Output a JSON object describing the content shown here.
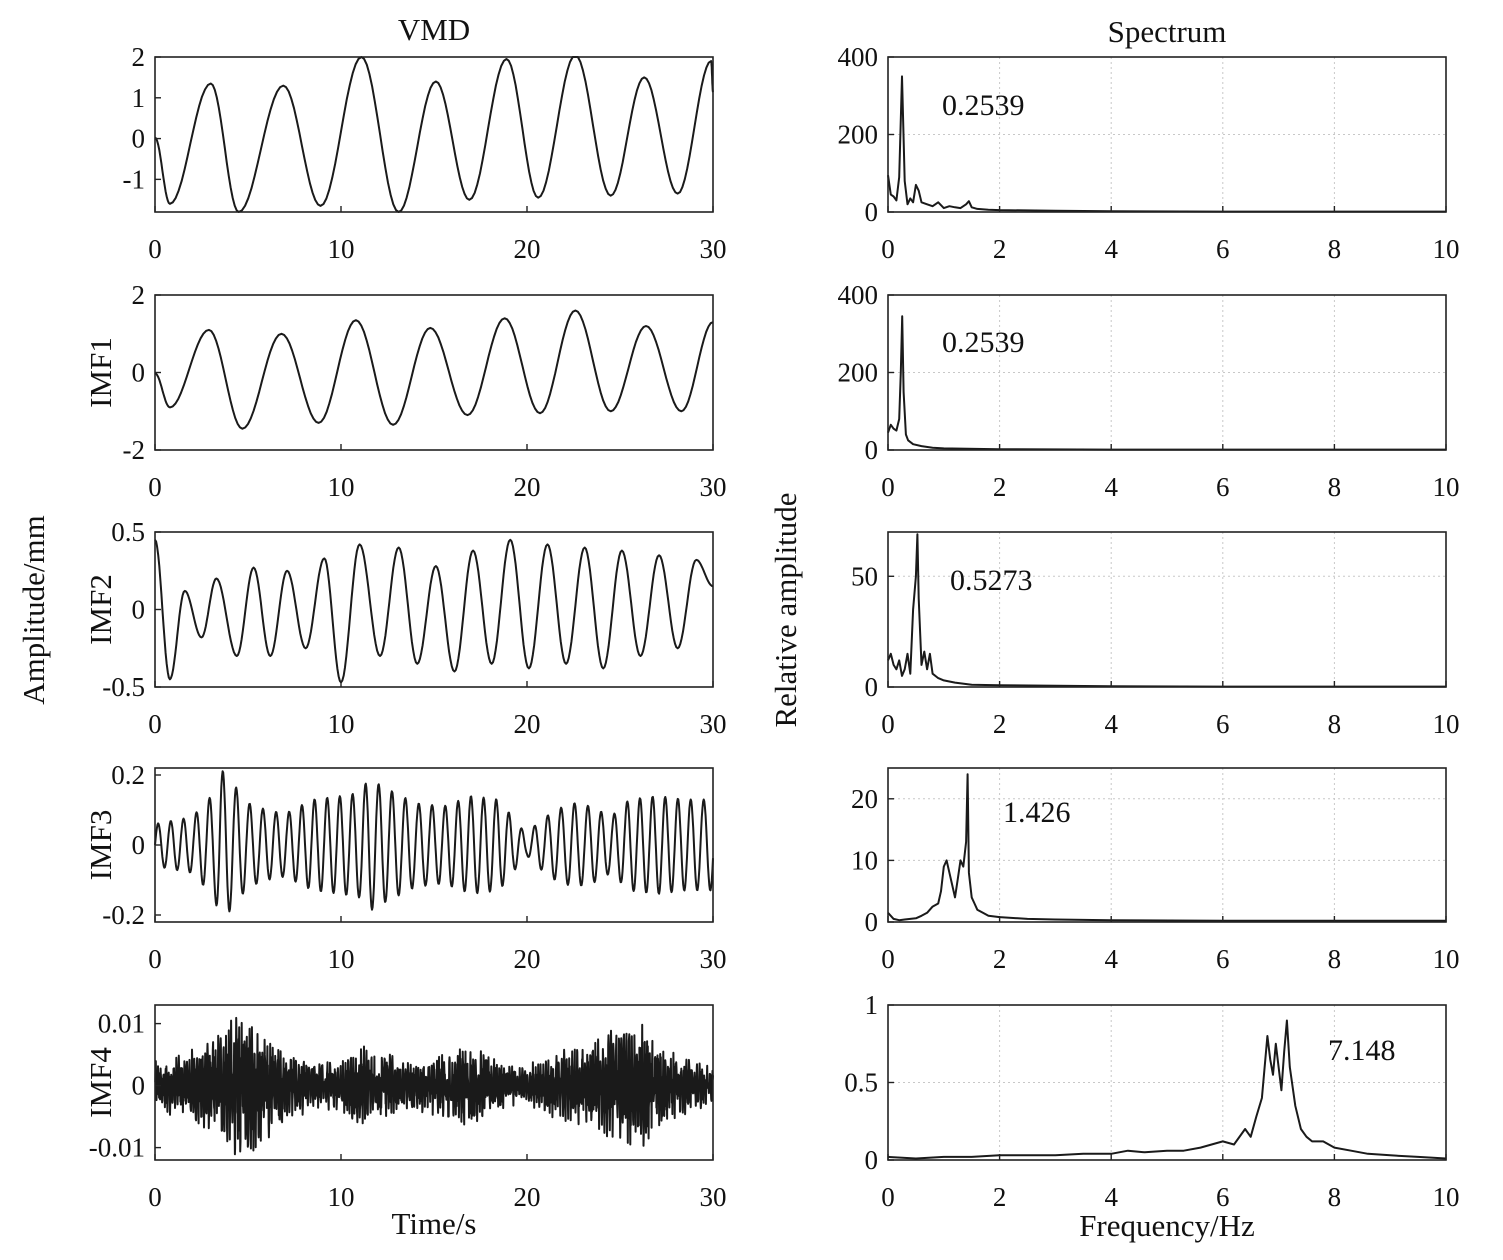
{
  "figure": {
    "left_title": "VMD",
    "right_title": "Spectrum",
    "left_ylabel": "Amplitude/mm",
    "right_ylabel": "Relative amplitude",
    "left_xlabel": "Time/s",
    "right_xlabel": "Frequency/Hz"
  },
  "chart_data": [
    {
      "type": "line",
      "panel": "time",
      "ylabel": "",
      "xlim": [
        0,
        30
      ],
      "ylim": [
        -1.8,
        2
      ],
      "xticks": [
        0,
        10,
        20,
        30
      ],
      "yticks": [
        -1,
        0,
        1,
        2
      ],
      "grid": false,
      "peaks_t": [
        3,
        6.9,
        11.1,
        15.1,
        18.9,
        22.6,
        26.3,
        29.9
      ],
      "peaks_y": [
        1.35,
        1.3,
        2.0,
        1.4,
        1.95,
        2.05,
        1.5,
        1.9
      ],
      "troughs_t": [
        0.8,
        4.5,
        8.9,
        13.1,
        16.9,
        20.6,
        24.5,
        28.1
      ],
      "troughs_y": [
        -1.6,
        -1.8,
        -1.65,
        -1.8,
        -1.5,
        -1.45,
        -1.4,
        -1.35
      ]
    },
    {
      "type": "line",
      "panel": "time",
      "ylabel": "IMF1",
      "xlim": [
        0,
        30
      ],
      "ylim": [
        -2,
        2
      ],
      "xticks": [
        0,
        10,
        20,
        30
      ],
      "yticks": [
        -2,
        0,
        2
      ],
      "grid": false,
      "peaks_t": [
        2.9,
        6.8,
        10.8,
        14.8,
        18.8,
        22.6,
        26.4,
        30
      ],
      "peaks_y": [
        1.1,
        1.0,
        1.35,
        1.15,
        1.4,
        1.6,
        1.2,
        1.3
      ],
      "troughs_t": [
        0.8,
        4.7,
        8.8,
        12.8,
        16.8,
        20.7,
        24.5,
        28.3
      ],
      "troughs_y": [
        -0.9,
        -1.45,
        -1.3,
        -1.35,
        -1.1,
        -1.05,
        -1.0,
        -1.0
      ]
    },
    {
      "type": "line",
      "panel": "time",
      "ylabel": "IMF2",
      "xlim": [
        0,
        30
      ],
      "ylim": [
        -0.5,
        0.5
      ],
      "xticks": [
        0,
        10,
        20,
        30
      ],
      "yticks": [
        -0.5,
        0,
        0.5
      ],
      "grid": false,
      "peaks_t": [
        0,
        1.6,
        3.3,
        5.3,
        7.1,
        9.1,
        11,
        13.1,
        15.1,
        17.1,
        19.1,
        21.1,
        23.1,
        25.1,
        27.1,
        29.1
      ],
      "peaks_y": [
        0.45,
        0.12,
        0.2,
        0.27,
        0.25,
        0.33,
        0.42,
        0.4,
        0.28,
        0.38,
        0.45,
        0.42,
        0.4,
        0.38,
        0.35,
        0.32
      ],
      "troughs_t": [
        0.8,
        2.5,
        4.4,
        6.2,
        8.1,
        10,
        12.1,
        14.1,
        16.1,
        18.1,
        20.1,
        22.1,
        24.1,
        26.1,
        28.1,
        30
      ],
      "troughs_y": [
        -0.45,
        -0.18,
        -0.3,
        -0.3,
        -0.25,
        -0.47,
        -0.3,
        -0.35,
        -0.4,
        -0.35,
        -0.38,
        -0.35,
        -0.38,
        -0.3,
        -0.25,
        0.15
      ]
    },
    {
      "type": "line",
      "panel": "time",
      "ylabel": "IMF3",
      "xlim": [
        0,
        30
      ],
      "ylim": [
        -0.22,
        0.22
      ],
      "xticks": [
        0,
        10,
        20,
        30
      ],
      "yticks": [
        -0.2,
        0,
        0.2
      ],
      "grid": false,
      "carrier_freq": 1.43,
      "envelope_t": [
        0,
        2,
        3.2,
        3.5,
        4,
        5,
        6,
        7,
        8.5,
        10,
        11,
        11.5,
        12.5,
        14,
        15.5,
        17,
        18.5,
        19.5,
        20,
        20.5,
        21.5,
        22.5,
        23.5,
        24.5,
        25.5,
        27,
        28.5,
        30
      ],
      "envelope_y": [
        0.06,
        0.08,
        0.15,
        0.22,
        0.19,
        0.12,
        0.1,
        0.09,
        0.13,
        0.14,
        0.15,
        0.19,
        0.16,
        0.12,
        0.11,
        0.14,
        0.13,
        0.06,
        0.03,
        0.06,
        0.1,
        0.12,
        0.11,
        0.08,
        0.13,
        0.14,
        0.13,
        0.13
      ]
    },
    {
      "type": "line",
      "panel": "time",
      "ylabel": "IMF4",
      "xlim": [
        0,
        30
      ],
      "ylim": [
        -0.012,
        0.013
      ],
      "xticks": [
        0,
        10,
        20,
        30
      ],
      "yticks": [
        -0.01,
        0,
        0.01
      ],
      "grid": false,
      "carrier_freq": 7.148,
      "envelope_t": [
        0,
        2,
        3.5,
        4.5,
        5.5,
        7,
        8.5,
        10,
        11,
        12,
        13.5,
        15,
        16.5,
        18,
        19.5,
        20.5,
        22,
        23.5,
        25,
        26,
        27.5,
        29,
        30
      ],
      "envelope_y": [
        0.004,
        0.006,
        0.009,
        0.012,
        0.011,
        0.006,
        0.004,
        0.004,
        0.007,
        0.006,
        0.004,
        0.005,
        0.007,
        0.005,
        0.003,
        0.004,
        0.006,
        0.007,
        0.01,
        0.011,
        0.006,
        0.004,
        0.003
      ]
    },
    {
      "type": "line",
      "panel": "spectrum",
      "peak_label": "0.2539",
      "xlim": [
        0,
        10
      ],
      "ylim": [
        0,
        400
      ],
      "xticks": [
        0,
        2,
        4,
        6,
        8,
        10
      ],
      "yticks": [
        0,
        200,
        400
      ],
      "grid": true,
      "x": [
        0,
        0.05,
        0.1,
        0.15,
        0.2,
        0.25,
        0.3,
        0.35,
        0.4,
        0.45,
        0.5,
        0.55,
        0.6,
        0.7,
        0.8,
        0.9,
        1.0,
        1.1,
        1.2,
        1.3,
        1.4,
        1.45,
        1.5,
        1.6,
        1.8,
        2,
        3,
        4,
        6,
        8,
        10
      ],
      "y": [
        95,
        45,
        40,
        30,
        90,
        350,
        80,
        20,
        35,
        25,
        70,
        55,
        25,
        20,
        15,
        25,
        10,
        15,
        12,
        10,
        20,
        28,
        12,
        8,
        6,
        5,
        3,
        2,
        1,
        1,
        1
      ]
    },
    {
      "type": "line",
      "panel": "spectrum",
      "peak_label": "0.2539",
      "xlim": [
        0,
        10
      ],
      "ylim": [
        0,
        400
      ],
      "xticks": [
        0,
        2,
        4,
        6,
        8,
        10
      ],
      "yticks": [
        0,
        200,
        400
      ],
      "grid": true,
      "x": [
        0,
        0.05,
        0.1,
        0.15,
        0.2,
        0.23,
        0.2539,
        0.28,
        0.32,
        0.36,
        0.45,
        0.6,
        0.8,
        1.0,
        2,
        4,
        6,
        8,
        10
      ],
      "y": [
        45,
        65,
        55,
        50,
        80,
        200,
        345,
        150,
        40,
        25,
        15,
        10,
        6,
        4,
        2,
        1,
        1,
        1,
        1
      ]
    },
    {
      "type": "line",
      "panel": "spectrum",
      "peak_label": "0.5273",
      "xlim": [
        0,
        10
      ],
      "ylim": [
        0,
        70
      ],
      "xticks": [
        0,
        2,
        4,
        6,
        8,
        10
      ],
      "yticks": [
        0,
        50
      ],
      "grid": true,
      "x": [
        0,
        0.05,
        0.1,
        0.15,
        0.2,
        0.25,
        0.3,
        0.35,
        0.4,
        0.45,
        0.5,
        0.5273,
        0.55,
        0.6,
        0.65,
        0.7,
        0.75,
        0.8,
        0.9,
        1.0,
        1.2,
        1.5,
        2,
        4,
        6,
        8,
        10
      ],
      "y": [
        12,
        15,
        10,
        8,
        12,
        5,
        8,
        15,
        6,
        35,
        50,
        69,
        40,
        10,
        16,
        8,
        15,
        6,
        4,
        3,
        2,
        1,
        0.8,
        0.3,
        0.2,
        0.2,
        0.2
      ]
    },
    {
      "type": "line",
      "panel": "spectrum",
      "peak_label": "1.426",
      "xlim": [
        0,
        10
      ],
      "ylim": [
        0,
        25
      ],
      "xticks": [
        0,
        2,
        4,
        6,
        8,
        10
      ],
      "yticks": [
        0,
        10,
        20
      ],
      "grid": true,
      "x": [
        0,
        0.1,
        0.2,
        0.3,
        0.4,
        0.5,
        0.6,
        0.7,
        0.8,
        0.9,
        0.95,
        1.0,
        1.05,
        1.1,
        1.15,
        1.2,
        1.25,
        1.3,
        1.35,
        1.4,
        1.426,
        1.45,
        1.5,
        1.55,
        1.6,
        1.7,
        1.8,
        2.0,
        2.5,
        3,
        4,
        6,
        8,
        10
      ],
      "y": [
        1.5,
        0.5,
        0.3,
        0.4,
        0.5,
        0.6,
        1,
        1.5,
        2.5,
        3,
        5,
        9,
        10,
        8,
        6,
        4,
        7,
        10,
        9,
        13,
        24,
        8,
        4,
        3,
        2,
        1.5,
        1,
        0.8,
        0.5,
        0.4,
        0.3,
        0.2,
        0.2,
        0.2
      ]
    },
    {
      "type": "line",
      "panel": "spectrum",
      "peak_label": "7.148",
      "xlim": [
        0,
        10
      ],
      "ylim": [
        0,
        1
      ],
      "xticks": [
        0,
        2,
        4,
        6,
        8,
        10
      ],
      "yticks": [
        0,
        0.5,
        1
      ],
      "grid": true,
      "x": [
        0,
        0.5,
        1,
        1.5,
        2,
        2.5,
        3,
        3.5,
        4,
        4.3,
        4.6,
        5,
        5.3,
        5.6,
        5.8,
        6.0,
        6.2,
        6.4,
        6.5,
        6.6,
        6.7,
        6.8,
        6.85,
        6.9,
        6.95,
        7.0,
        7.05,
        7.1,
        7.148,
        7.2,
        7.3,
        7.4,
        7.5,
        7.6,
        7.8,
        8.0,
        8.3,
        8.6,
        9,
        9.5,
        10
      ],
      "y": [
        0.02,
        0.01,
        0.02,
        0.02,
        0.03,
        0.03,
        0.03,
        0.04,
        0.04,
        0.06,
        0.05,
        0.06,
        0.06,
        0.08,
        0.1,
        0.12,
        0.1,
        0.2,
        0.15,
        0.28,
        0.4,
        0.8,
        0.65,
        0.55,
        0.75,
        0.6,
        0.45,
        0.7,
        0.9,
        0.6,
        0.35,
        0.2,
        0.15,
        0.12,
        0.12,
        0.08,
        0.06,
        0.04,
        0.03,
        0.02,
        0.01
      ]
    }
  ]
}
